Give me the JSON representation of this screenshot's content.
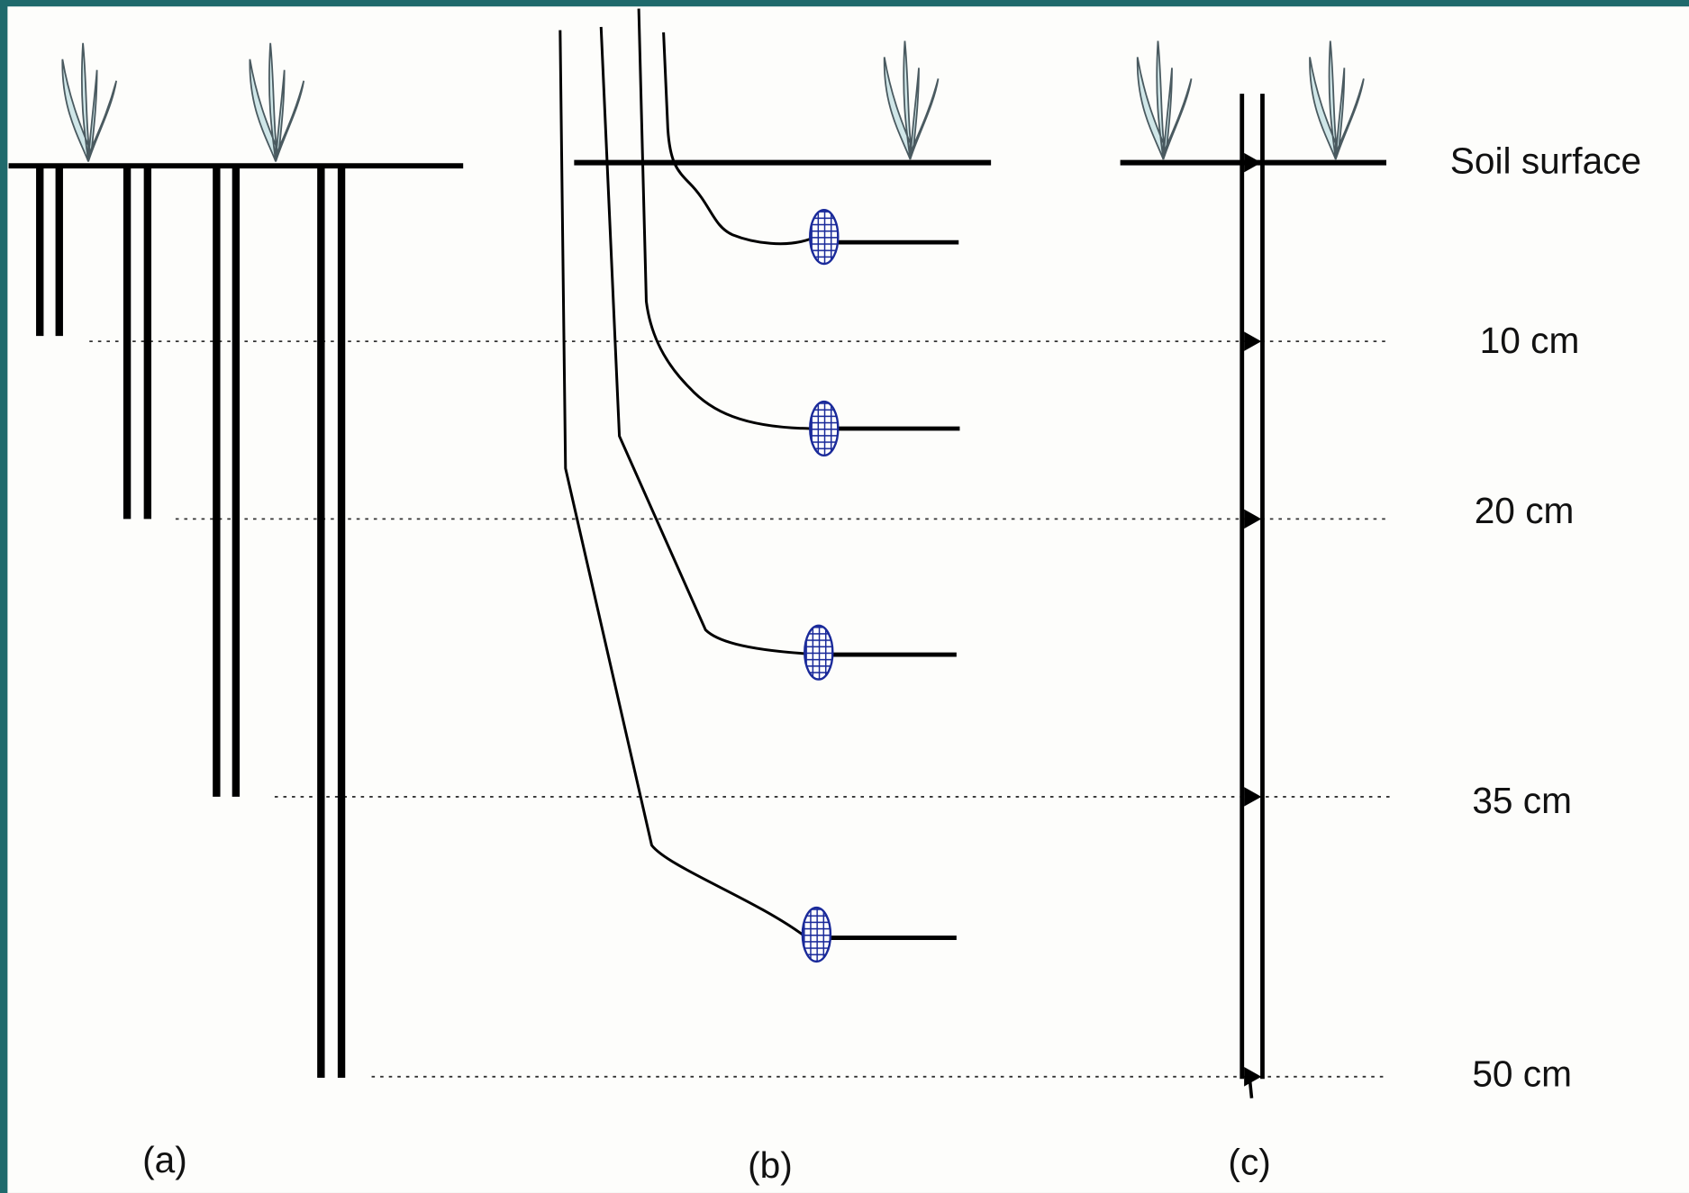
{
  "labels": {
    "surface": "Soil surface",
    "depths": [
      "10 cm",
      "20 cm",
      "35 cm",
      "50 cm"
    ],
    "panels": [
      "(a)",
      "(b)",
      "(c)"
    ]
  }
}
